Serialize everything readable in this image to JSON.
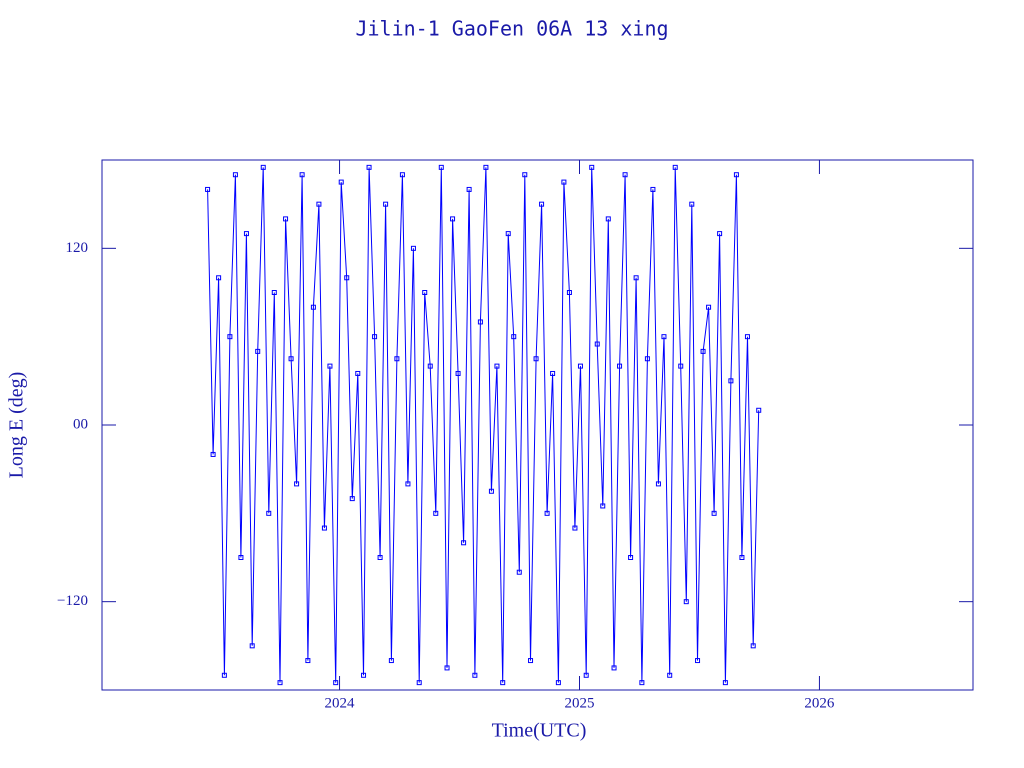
{
  "chart_data": {
    "type": "line",
    "title": "Jilin-1 GaoFen 06A 13 xing",
    "xlabel": "Time(UTC)",
    "ylabel": "Long E (deg)",
    "color": "#0000ff",
    "xlim": [
      2023.01,
      2026.64
    ],
    "ylim": [
      -180,
      180
    ],
    "xticks": [
      2024,
      2025,
      2026
    ],
    "yticks": [
      120,
      {
        "value": 0,
        "label": "00"
      },
      {
        "value": -120,
        "label": "−120"
      }
    ],
    "x": [
      2023.45,
      2023.473,
      2023.496,
      2023.52,
      2023.543,
      2023.566,
      2023.589,
      2023.612,
      2023.636,
      2023.659,
      2023.682,
      2023.705,
      2023.728,
      2023.752,
      2023.775,
      2023.798,
      2023.821,
      2023.844,
      2023.868,
      2023.891,
      2023.914,
      2023.937,
      2023.96,
      2023.984,
      2024.007,
      2024.03,
      2024.053,
      2024.076,
      2024.1,
      2024.123,
      2024.146,
      2024.169,
      2024.192,
      2024.216,
      2024.239,
      2024.262,
      2024.285,
      2024.308,
      2024.332,
      2024.355,
      2024.378,
      2024.401,
      2024.424,
      2024.448,
      2024.471,
      2024.494,
      2024.517,
      2024.54,
      2024.564,
      2024.587,
      2024.61,
      2024.633,
      2024.656,
      2024.68,
      2024.703,
      2024.726,
      2024.749,
      2024.772,
      2024.796,
      2024.819,
      2024.842,
      2024.865,
      2024.888,
      2024.912,
      2024.935,
      2024.958,
      2024.981,
      2025.004,
      2025.028,
      2025.051,
      2025.074,
      2025.097,
      2025.12,
      2025.144,
      2025.167,
      2025.19,
      2025.213,
      2025.236,
      2025.26,
      2025.283,
      2025.306,
      2025.329,
      2025.352,
      2025.376,
      2025.399,
      2025.422,
      2025.445,
      2025.468,
      2025.492,
      2025.515,
      2025.538,
      2025.561,
      2025.584,
      2025.608,
      2025.631,
      2025.654,
      2025.677,
      2025.7,
      2025.724,
      2025.747
    ],
    "values": [
      160,
      -20,
      100,
      -170,
      60,
      170,
      -90,
      130,
      -150,
      50,
      175,
      -60,
      90,
      -175,
      140,
      45,
      -40,
      170,
      -160,
      80,
      150,
      -70,
      40,
      -175,
      165,
      100,
      -50,
      35,
      -170,
      175,
      60,
      -90,
      150,
      -160,
      45,
      170,
      -40,
      120,
      -175,
      90,
      40,
      -60,
      175,
      -165,
      140,
      35,
      -80,
      160,
      -170,
      70,
      175,
      -45,
      40,
      -175,
      130,
      60,
      -100,
      170,
      -160,
      45,
      150,
      -60,
      35,
      -175,
      165,
      90,
      -70,
      40,
      -170,
      175,
      55,
      -55,
      140,
      -165,
      40,
      170,
      -90,
      100,
      -175,
      45,
      160,
      -40,
      60,
      -170,
      175,
      40,
      -120,
      150,
      -160,
      50,
      80,
      -60,
      130,
      -175,
      30,
      170,
      -90,
      60,
      -150,
      10
    ]
  }
}
